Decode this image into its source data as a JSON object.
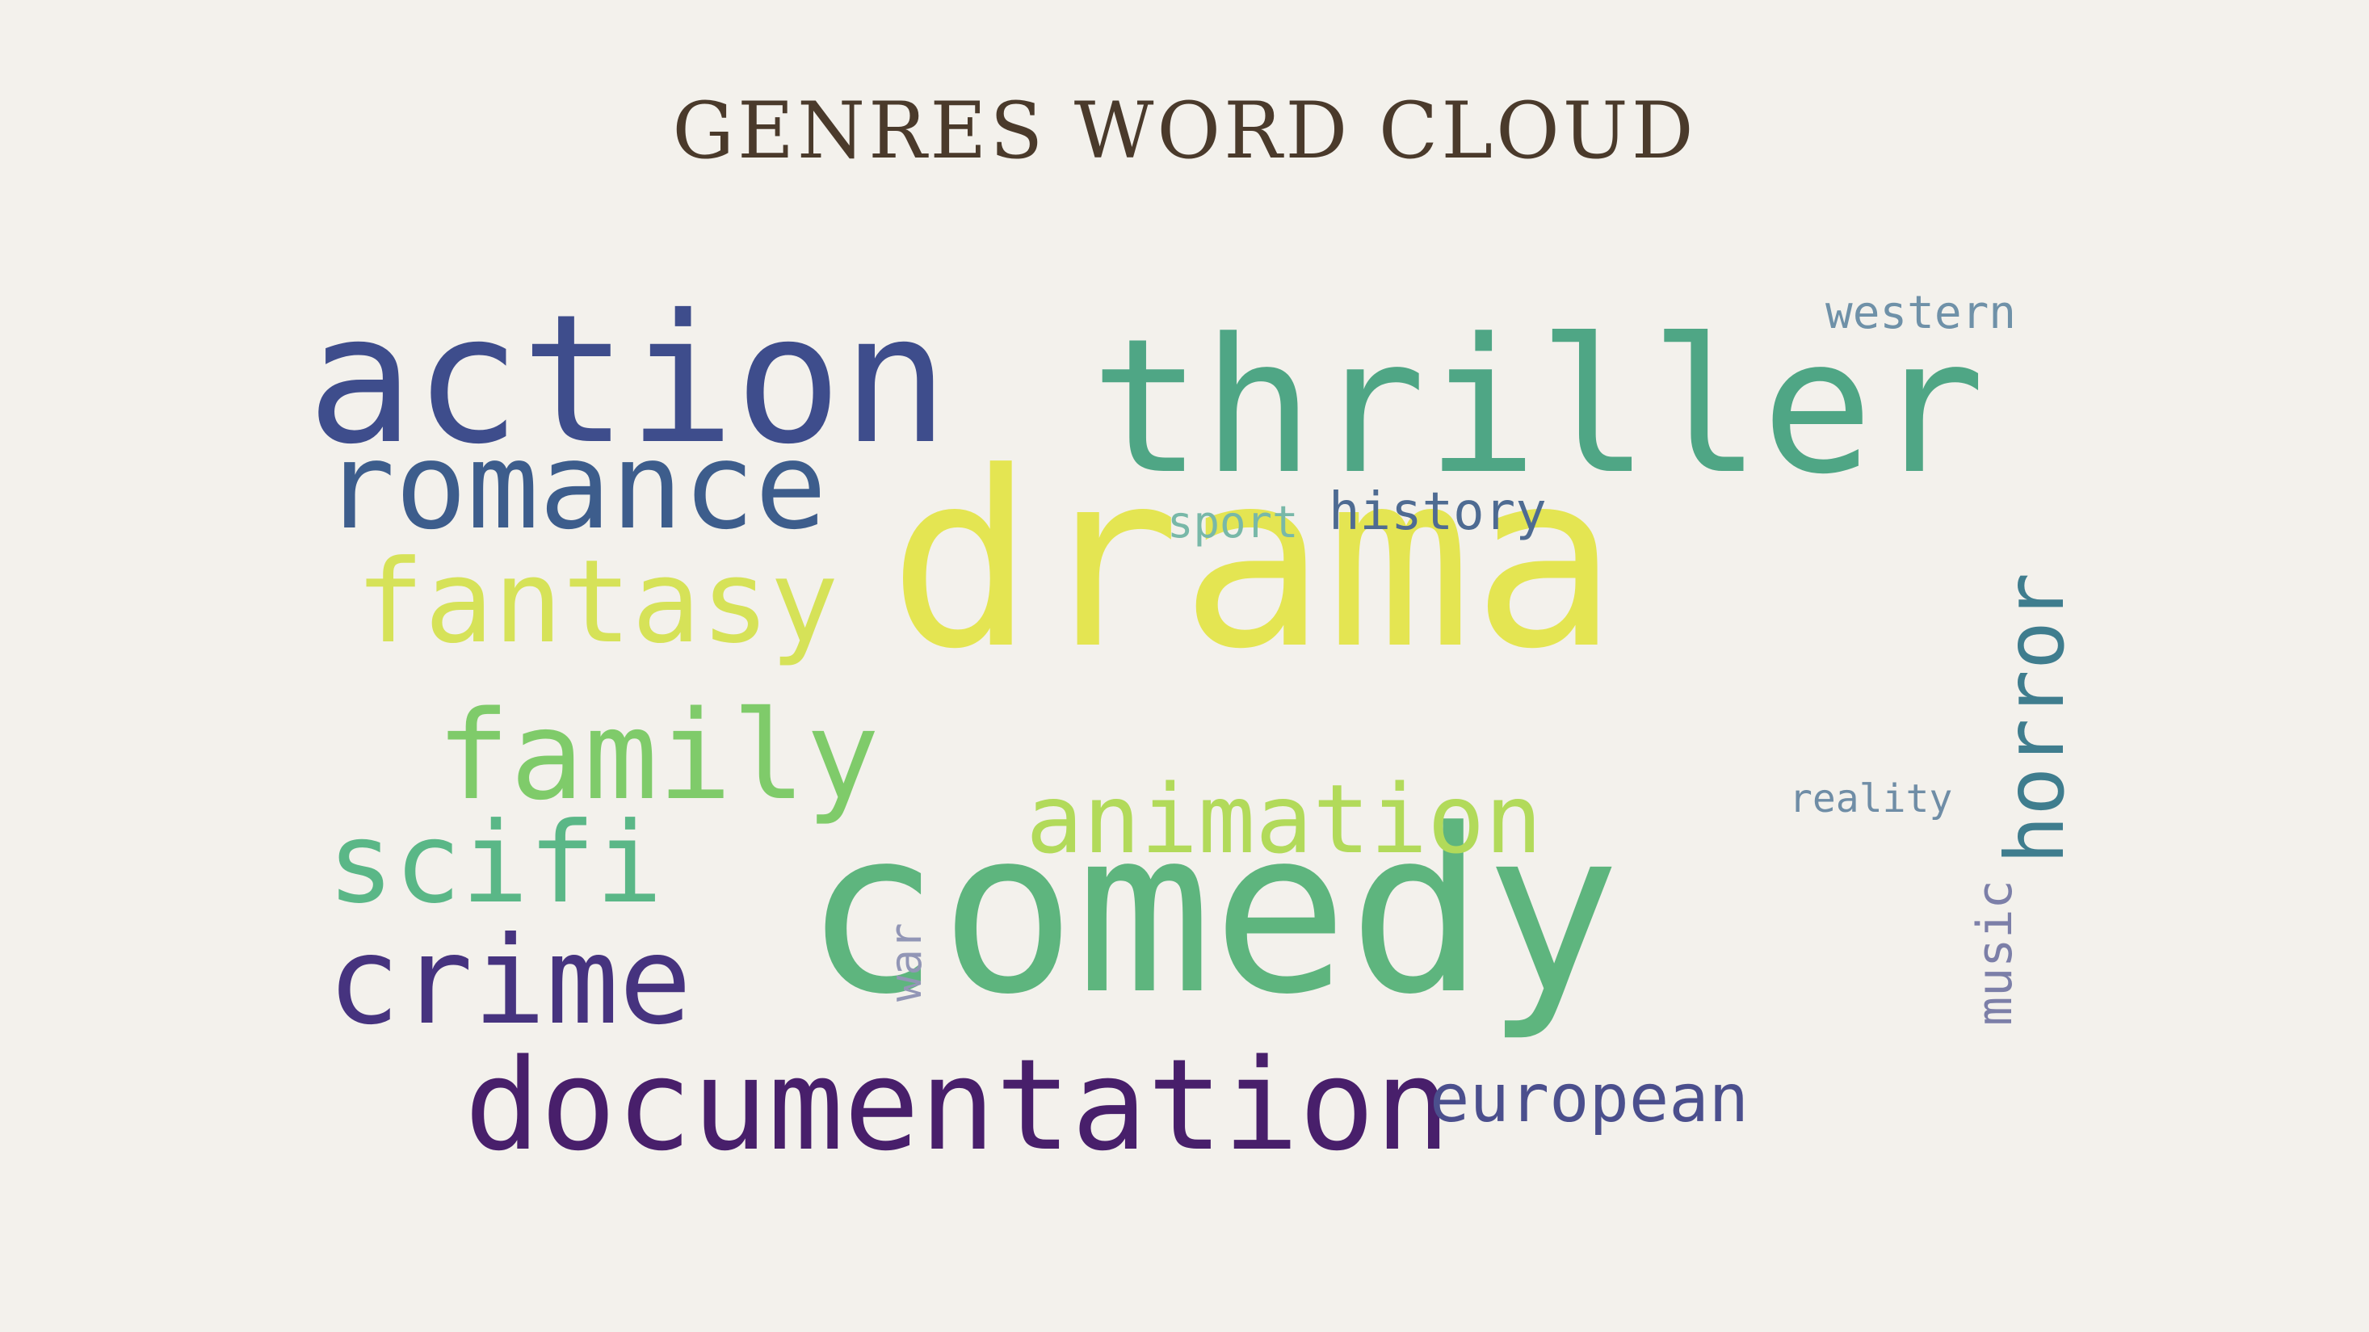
{
  "title": "GENRES WORD CLOUD",
  "words": [
    {
      "text": "drama",
      "color": "#e4e552"
    },
    {
      "text": "comedy",
      "color": "#5eb57e"
    },
    {
      "text": "thriller",
      "color": "#4fa685"
    },
    {
      "text": "action",
      "color": "#3e4d8c"
    },
    {
      "text": "documentation",
      "color": "#481f6b"
    },
    {
      "text": "romance",
      "color": "#3d5d8c"
    },
    {
      "text": "crime",
      "color": "#46337f"
    },
    {
      "text": "family",
      "color": "#7fcb6a"
    },
    {
      "text": "fantasy",
      "color": "#d6e258"
    },
    {
      "text": "scifi",
      "color": "#5ab787"
    },
    {
      "text": "animation",
      "color": "#b2da5a"
    },
    {
      "text": "horror",
      "color": "#3f7d8e"
    },
    {
      "text": "european",
      "color": "#4b4f8d"
    },
    {
      "text": "history",
      "color": "#4e6b92"
    },
    {
      "text": "western",
      "color": "#6f91a8"
    },
    {
      "text": "sport",
      "color": "#78b8a8"
    },
    {
      "text": "reality",
      "color": "#6f8da6"
    },
    {
      "text": "music",
      "color": "#7c7fa8"
    },
    {
      "text": "war",
      "color": "#9296b6"
    }
  ]
}
